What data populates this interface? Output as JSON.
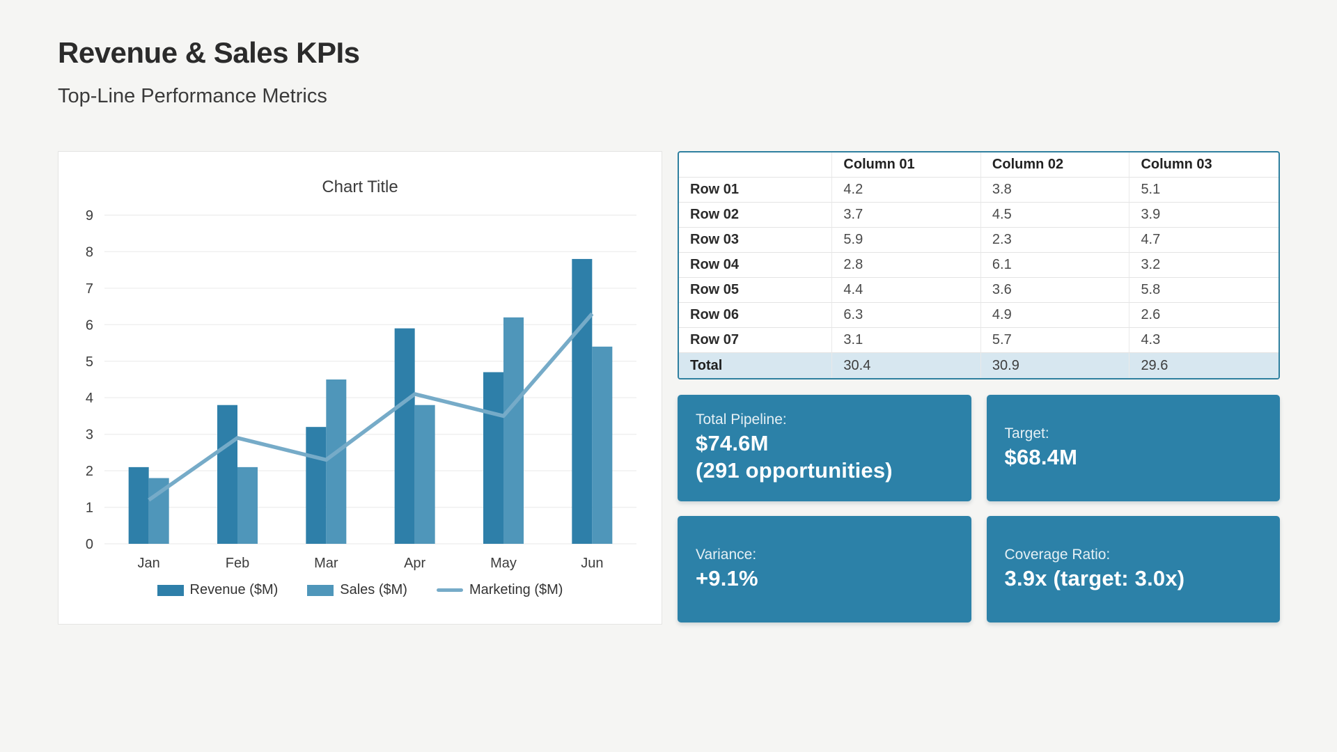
{
  "page": {
    "title": "Revenue & Sales KPIs",
    "subtitle": "Top-Line Performance Metrics"
  },
  "chart_data": {
    "type": "bar",
    "title": "Chart Title",
    "categories": [
      "Jan",
      "Feb",
      "Mar",
      "Apr",
      "May",
      "Jun"
    ],
    "series": [
      {
        "name": "Revenue ($M)",
        "type": "bar",
        "color": "#2e7fa9",
        "values": [
          2.1,
          3.8,
          3.2,
          5.9,
          4.7,
          7.8
        ]
      },
      {
        "name": "Sales ($M)",
        "type": "bar",
        "color": "#4f96ba",
        "values": [
          1.8,
          2.1,
          4.5,
          3.8,
          6.2,
          5.4
        ]
      },
      {
        "name": "Marketing ($M)",
        "type": "line",
        "color": "#76abc8",
        "values": [
          1.2,
          2.9,
          2.3,
          4.1,
          3.5,
          6.3
        ]
      }
    ],
    "xlabel": "",
    "ylabel": "",
    "ylim": [
      0,
      9
    ],
    "ytick_step": 1,
    "grid": true,
    "legend_position": "bottom"
  },
  "table": {
    "columns": [
      "",
      "Column 01",
      "Column 02",
      "Column 03"
    ],
    "rows": [
      {
        "label": "Row 01",
        "values": [
          "4.2",
          "3.8",
          "5.1"
        ]
      },
      {
        "label": "Row 02",
        "values": [
          "3.7",
          "4.5",
          "3.9"
        ]
      },
      {
        "label": "Row 03",
        "values": [
          "5.9",
          "2.3",
          "4.7"
        ]
      },
      {
        "label": "Row 04",
        "values": [
          "2.8",
          "6.1",
          "3.2"
        ]
      },
      {
        "label": "Row 05",
        "values": [
          "4.4",
          "3.6",
          "5.8"
        ]
      },
      {
        "label": "Row 06",
        "values": [
          "6.3",
          "4.9",
          "2.6"
        ]
      },
      {
        "label": "Row 07",
        "values": [
          "3.1",
          "5.7",
          "4.3"
        ]
      }
    ],
    "total": {
      "label": "Total",
      "values": [
        "30.4",
        "30.9",
        "29.6"
      ]
    }
  },
  "kpi_cards": [
    {
      "label": "Total Pipeline:",
      "value_lines": [
        "$74.6M",
        "(291 opportunities)"
      ]
    },
    {
      "label": "Target:",
      "value_lines": [
        "$68.4M"
      ]
    },
    {
      "label": "Variance:",
      "value_lines": [
        "+9.1%"
      ]
    },
    {
      "label": "Coverage Ratio:",
      "value_lines": [
        "3.9x (target: 3.0x)"
      ]
    }
  ],
  "colors": {
    "accent": "#2c81a8",
    "card_background": "#2c81a8",
    "table_border": "#2e7f9f",
    "total_row_background": "#d7e7f0",
    "gridline": "#efefef",
    "axis_text": "#3c3c3c"
  }
}
